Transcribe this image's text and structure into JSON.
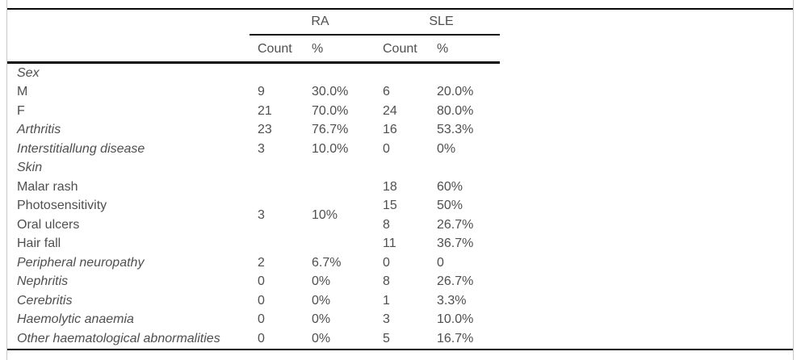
{
  "table": {
    "group_headers": {
      "ra": "RA",
      "sle": "SLE"
    },
    "subheaders": {
      "ra_count": "Count",
      "ra_pct": "%",
      "sle_count": "Count",
      "sle_pct": "%"
    },
    "rows": [
      {
        "label": "Sex",
        "ra_count": "",
        "ra_pct": "",
        "sle_count": "",
        "sle_pct": ""
      },
      {
        "label": "M",
        "ra_count": "9",
        "ra_pct": "30.0%",
        "sle_count": "6",
        "sle_pct": "20.0%"
      },
      {
        "label": "F",
        "ra_count": "21",
        "ra_pct": "70.0%",
        "sle_count": "24",
        "sle_pct": "80.0%"
      },
      {
        "label": "Arthritis",
        "ra_count": "23",
        "ra_pct": "76.7%",
        "sle_count": "16",
        "sle_pct": "53.3%"
      },
      {
        "label": "Interstitiallung disease",
        "ra_count": "3",
        "ra_pct": "10.0%",
        "sle_count": "0",
        "sle_pct": "0%"
      },
      {
        "label": "Skin",
        "ra_count": "",
        "ra_pct": "",
        "sle_count": "",
        "sle_pct": ""
      },
      {
        "label": "Malar rash",
        "ra_count": "",
        "ra_pct": "",
        "sle_count": "18",
        "sle_pct": "60%"
      },
      {
        "label": "Photosensitivity",
        "ra_count": "",
        "ra_pct": "",
        "sle_count": "15",
        "sle_pct": "50%"
      },
      {
        "label": "Oral ulcers",
        "ra_count": "",
        "ra_pct": "",
        "sle_count": "8",
        "sle_pct": "26.7%"
      },
      {
        "label": "Hair fall",
        "ra_count": "",
        "ra_pct": "",
        "sle_count": "11",
        "sle_pct": "36.7%"
      },
      {
        "label": "Peripheral neuropathy",
        "ra_count": "2",
        "ra_pct": "6.7%",
        "sle_count": "0",
        "sle_pct": "0"
      },
      {
        "label": "Nephritis",
        "ra_count": "0",
        "ra_pct": "0%",
        "sle_count": "8",
        "sle_pct": "26.7%"
      },
      {
        "label": "Cerebritis",
        "ra_count": "0",
        "ra_pct": "0%",
        "sle_count": "1",
        "sle_pct": "3.3%"
      },
      {
        "label": "Haemolytic anaemia",
        "ra_count": "0",
        "ra_pct": "0%",
        "sle_count": "3",
        "sle_pct": "10.0%"
      },
      {
        "label": "Other haematological abnormalities",
        "ra_count": "0",
        "ra_pct": "0%",
        "sle_count": "5",
        "sle_pct": "16.7%"
      }
    ],
    "skin_merged": {
      "ra_count": "3",
      "ra_pct": "10%"
    }
  },
  "colors": {
    "text": "#4f4f4f",
    "rule": "#0a0a0a",
    "frame_border": "#c9c9c9",
    "background": "#ffffff"
  },
  "chart_data": {
    "type": "table",
    "title": "",
    "column_groups": [
      "RA",
      "SLE"
    ],
    "columns": [
      "Count",
      "%",
      "Count",
      "%"
    ],
    "row_labels": [
      "Sex",
      "M",
      "F",
      "Arthritis",
      "Interstitiallung disease",
      "Skin",
      "Malar rash",
      "Photosensitivity",
      "Oral ulcers",
      "Hair fall",
      "Peripheral neuropathy",
      "Nephritis",
      "Cerebritis",
      "Haemolytic anaemia",
      "Other haematological abnormalities"
    ],
    "notes": "RA Count/% for the four Skin sub-rows is a single merged cell: 3 / 10%"
  }
}
